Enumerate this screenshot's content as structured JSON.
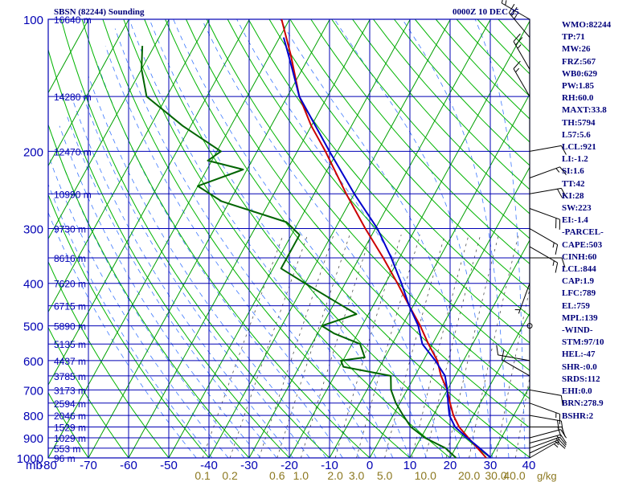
{
  "header": {
    "station": "SBSN (82244) Sounding",
    "timestamp": "0000Z 10 DEC 25"
  },
  "indices": [
    "WMO:82244",
    "TP:71",
    "MW:26",
    "FRZ:567",
    "WB0:629",
    "PW:1.85",
    "RH:60.0",
    "MAXT:33.8",
    "TH:5794",
    "L57:5.6",
    "LCL:921",
    "LI:-1.2",
    "SI:1.6",
    "TT:42",
    "KI:28",
    "SW:223",
    "EI:-1.4",
    "-PARCEL-",
    "CAPE:503",
    "CINH:60",
    "LCL:844",
    "CAP:1.9",
    "LFC:789",
    "EL:759",
    "MPL:139",
    "-WIND-",
    "STM:97/10",
    "HEL:-47",
    "SHR-:0.0",
    "SRDS:112",
    "EHI:0.0",
    "BRN:278.9",
    "BSHR:2"
  ],
  "colors": {
    "background": "#ffffff",
    "isobar": "#0000b4",
    "isotherm": "#0000b4",
    "skewed_isotherm": "#00a000",
    "dry_adiabat": "#00b400",
    "moist_adiabat": "#3c78ff",
    "mixing_ratio": "#505050",
    "temperature": "#0000cc",
    "dewpoint": "#006400",
    "parcel": "#cc0000",
    "label_dark": "#00007a",
    "mixing_label": "#8c7820",
    "wind": "#000000"
  },
  "chart_data": {
    "type": "skew-t",
    "title": "SBSN (82244) Sounding",
    "valid_time": "0000Z 10 DEC 25",
    "pressure_unit": "mb",
    "temperature_unit": "C",
    "pressure_range": [
      1000,
      100
    ],
    "temperature_range": [
      -80,
      40
    ],
    "pressure_labels": [
      "100",
      "200",
      "300",
      "400",
      "500",
      "600",
      "700",
      "800",
      "900",
      "1000"
    ],
    "temperature_labels": [
      "-80",
      "-70",
      "-60",
      "-50",
      "-40",
      "-30",
      "-20",
      "-10",
      "0",
      "10",
      "20",
      "30",
      "40"
    ],
    "axis_corner_label": "mb",
    "height_labels": [
      {
        "p": 100,
        "text": "16640 m"
      },
      {
        "p": 150,
        "text": "14280 m"
      },
      {
        "p": 200,
        "text": "12470 m"
      },
      {
        "p": 250,
        "text": "10990 m"
      },
      {
        "p": 300,
        "text": "9730 m"
      },
      {
        "p": 350,
        "text": "8616 m"
      },
      {
        "p": 400,
        "text": "7620 m"
      },
      {
        "p": 450,
        "text": "6715 m"
      },
      {
        "p": 500,
        "text": "5890 m"
      },
      {
        "p": 550,
        "text": "5135 m"
      },
      {
        "p": 600,
        "text": "4437 m"
      },
      {
        "p": 650,
        "text": "3785 m"
      },
      {
        "p": 700,
        "text": "3173 m"
      },
      {
        "p": 750,
        "text": "2594 m"
      },
      {
        "p": 800,
        "text": "2046 m"
      },
      {
        "p": 850,
        "text": "1529 m"
      },
      {
        "p": 900,
        "text": "1029 m"
      },
      {
        "p": 950,
        "text": "553 m"
      },
      {
        "p": 1000,
        "text": "96 m"
      }
    ],
    "mixing_ratio_labels": [
      "0.1",
      "0.2",
      "0.6",
      "1.0",
      "2.0",
      "3.0",
      "5.0",
      "10.0",
      "20.0",
      "30.0",
      "40.0"
    ],
    "mixing_ratio_unit": "g/kg",
    "series": [
      {
        "name": "Parcel",
        "points": [
          {
            "p": 1000,
            "t": 29.0
          },
          {
            "p": 950,
            "t": 25.5
          },
          {
            "p": 900,
            "t": 21.8
          },
          {
            "p": 850,
            "t": 18.0
          },
          {
            "p": 800,
            "t": 15.0
          },
          {
            "p": 750,
            "t": 12.5
          },
          {
            "p": 700,
            "t": 10.0
          },
          {
            "p": 650,
            "t": 6.5
          },
          {
            "p": 600,
            "t": 3.5
          },
          {
            "p": 550,
            "t": -1.0
          },
          {
            "p": 500,
            "t": -5.5
          },
          {
            "p": 450,
            "t": -11.0
          },
          {
            "p": 400,
            "t": -17.0
          },
          {
            "p": 350,
            "t": -24.0
          },
          {
            "p": 300,
            "t": -32.5
          },
          {
            "p": 250,
            "t": -42.0
          },
          {
            "p": 200,
            "t": -53.0
          },
          {
            "p": 175,
            "t": -60.0
          },
          {
            "p": 150,
            "t": -67.0
          },
          {
            "p": 120,
            "t": -75.0
          },
          {
            "p": 100,
            "t": -82.0
          }
        ]
      },
      {
        "name": "Temperature",
        "points": [
          {
            "p": 1000,
            "t": 30.2
          },
          {
            "p": 950,
            "t": 26.0
          },
          {
            "p": 900,
            "t": 21.5
          },
          {
            "p": 850,
            "t": 17.0
          },
          {
            "p": 800,
            "t": 14.0
          },
          {
            "p": 750,
            "t": 12.0
          },
          {
            "p": 700,
            "t": 10.0
          },
          {
            "p": 650,
            "t": 7.5
          },
          {
            "p": 600,
            "t": 3.0
          },
          {
            "p": 550,
            "t": -2.5
          },
          {
            "p": 500,
            "t": -6.0
          },
          {
            "p": 450,
            "t": -11.0
          },
          {
            "p": 400,
            "t": -16.0
          },
          {
            "p": 350,
            "t": -22.0
          },
          {
            "p": 300,
            "t": -29.5
          },
          {
            "p": 250,
            "t": -40.0
          },
          {
            "p": 200,
            "t": -52.0
          },
          {
            "p": 150,
            "t": -67.0
          },
          {
            "p": 125,
            "t": -74.0
          },
          {
            "p": 110,
            "t": -79.0
          }
        ]
      },
      {
        "name": "Dewpoint",
        "points": [
          {
            "p": 1000,
            "t": 21.5
          },
          {
            "p": 950,
            "t": 17.5
          },
          {
            "p": 900,
            "t": 11.0
          },
          {
            "p": 850,
            "t": 6.0
          },
          {
            "p": 800,
            "t": 2.5
          },
          {
            "p": 750,
            "t": -1.0
          },
          {
            "p": 700,
            "t": -4.0
          },
          {
            "p": 650,
            "t": -6.0
          },
          {
            "p": 620,
            "t": -19.0
          },
          {
            "p": 600,
            "t": -20.5
          },
          {
            "p": 590,
            "t": -15.0
          },
          {
            "p": 550,
            "t": -18.0
          },
          {
            "p": 520,
            "t": -26.0
          },
          {
            "p": 500,
            "t": -30.0
          },
          {
            "p": 470,
            "t": -23.0
          },
          {
            "p": 440,
            "t": -30.0
          },
          {
            "p": 400,
            "t": -40.0
          },
          {
            "p": 370,
            "t": -48.0
          },
          {
            "p": 340,
            "t": -48.0
          },
          {
            "p": 310,
            "t": -48.0
          },
          {
            "p": 290,
            "t": -53.0
          },
          {
            "p": 260,
            "t": -72.0
          },
          {
            "p": 240,
            "t": -80.0
          },
          {
            "p": 220,
            "t": -71.0
          },
          {
            "p": 210,
            "t": -81.0
          },
          {
            "p": 200,
            "t": -79.0
          },
          {
            "p": 175,
            "t": -92.0
          },
          {
            "p": 150,
            "t": -105.0
          },
          {
            "p": 130,
            "t": -110.0
          },
          {
            "p": 115,
            "t": -113.0
          }
        ]
      }
    ],
    "wind_barbs": [
      {
        "p": 1000,
        "dir": 60,
        "kt": 15
      },
      {
        "p": 975,
        "dir": 65,
        "kt": 15
      },
      {
        "p": 950,
        "dir": 70,
        "kt": 15
      },
      {
        "p": 925,
        "dir": 75,
        "kt": 15
      },
      {
        "p": 900,
        "dir": 75,
        "kt": 10
      },
      {
        "p": 850,
        "dir": 90,
        "kt": 20
      },
      {
        "p": 800,
        "dir": 100,
        "kt": 20
      },
      {
        "p": 750,
        "dir": 110,
        "kt": 15
      },
      {
        "p": 700,
        "dir": 100,
        "kt": 10
      },
      {
        "p": 650,
        "dir": 300,
        "kt": 10
      },
      {
        "p": 600,
        "dir": 280,
        "kt": 10
      },
      {
        "p": 500,
        "dir": 0,
        "kt": 0
      },
      {
        "p": 400,
        "dir": 200,
        "kt": 5
      },
      {
        "p": 350,
        "dir": 90,
        "kt": 10
      },
      {
        "p": 330,
        "dir": 120,
        "kt": 15
      },
      {
        "p": 300,
        "dir": 120,
        "kt": 15
      },
      {
        "p": 270,
        "dir": 110,
        "kt": 20
      },
      {
        "p": 250,
        "dir": 80,
        "kt": 20
      },
      {
        "p": 230,
        "dir": 70,
        "kt": 15
      },
      {
        "p": 200,
        "dir": 80,
        "kt": 10
      },
      {
        "p": 150,
        "dir": 330,
        "kt": 15
      },
      {
        "p": 130,
        "dir": 330,
        "kt": 25
      },
      {
        "p": 110,
        "dir": 320,
        "kt": 25
      },
      {
        "p": 100,
        "dir": 300,
        "kt": 15
      }
    ]
  }
}
